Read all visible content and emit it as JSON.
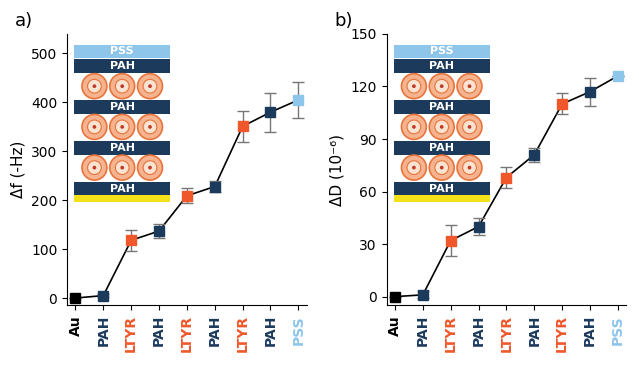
{
  "chart_data": [
    {
      "type": "line",
      "title": "a)",
      "y_label": "Δf (-Hz)",
      "categories": [
        "Au",
        "PAH",
        "LTYR",
        "PAH",
        "LTYR",
        "PAH",
        "LTYR",
        "PAH",
        "PSS"
      ],
      "values": [
        0,
        5,
        118,
        137,
        209,
        228,
        351,
        380,
        405
      ],
      "error": [
        0,
        3,
        22,
        15,
        15,
        12,
        32,
        40,
        37
      ],
      "colors": [
        "#000000",
        "#1b3a5c",
        "#f0572b",
        "#1b3a5c",
        "#f0572b",
        "#1b3a5c",
        "#f0572b",
        "#1b3a5c",
        "#8ec5ea"
      ],
      "marker": "square",
      "line_style": "solid",
      "ylim": [
        -15,
        540
      ],
      "yticks": [
        0,
        100,
        200,
        300,
        400,
        500
      ],
      "inset_layers": [
        "PSS",
        "PAH",
        "PAH",
        "PAH",
        "PAH"
      ]
    },
    {
      "type": "line",
      "title": "b)",
      "y_label": "ΔD (10⁻⁶)",
      "categories": [
        "Au",
        "PAH",
        "LTYR",
        "PAH",
        "LTYR",
        "PAH",
        "LTYR",
        "PAH",
        "PSS"
      ],
      "values": [
        0,
        1,
        32,
        40,
        68,
        81,
        110,
        117,
        126
      ],
      "error": [
        0,
        2,
        9,
        5,
        6,
        4,
        6,
        8,
        0
      ],
      "colors": [
        "#000000",
        "#1b3a5c",
        "#f0572b",
        "#1b3a5c",
        "#f0572b",
        "#1b3a5c",
        "#f0572b",
        "#1b3a5c",
        "#8ec5ea"
      ],
      "marker": "square",
      "line_style": "solid",
      "ylim": [
        -5,
        150
      ],
      "yticks": [
        0,
        30,
        60,
        90,
        120,
        150
      ],
      "inset_layers": [
        "PSS",
        "PAH",
        "PAH",
        "PAH",
        "PAH"
      ]
    }
  ]
}
